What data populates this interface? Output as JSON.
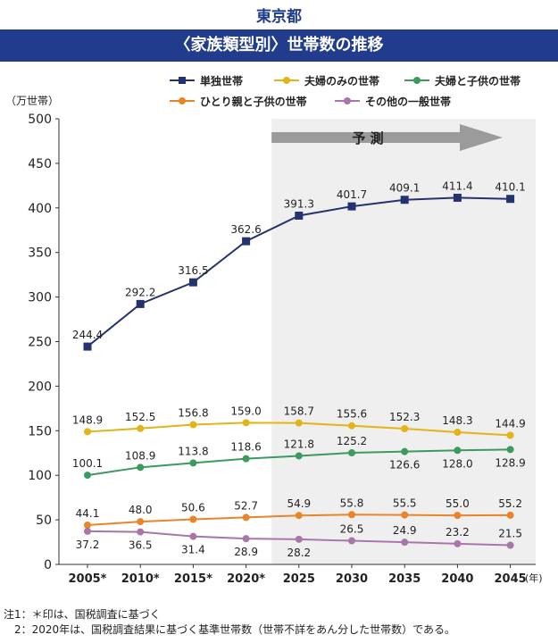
{
  "header": {
    "org": "東京都",
    "title": "〈家族類型別〉世帯数の推移"
  },
  "notes": [
    "注1：＊印は、国税調査に基づく",
    "　2：2020年は、国税調査結果に基づく基準世帯数（世帯不詳をあん分した世帯数）である。"
  ],
  "chart_data": {
    "type": "line",
    "ylabel": "（万世帯）",
    "xlabel_unit": "(年)",
    "ylim": [
      0,
      500
    ],
    "yticks": [
      0,
      50,
      100,
      150,
      200,
      250,
      300,
      350,
      400,
      450,
      500
    ],
    "categories": [
      "2005*",
      "2010*",
      "2015*",
      "2020*",
      "2025",
      "2030",
      "2035",
      "2040",
      "2045"
    ],
    "forecast_label": "予 測",
    "forecast_start_index": 4,
    "series": [
      {
        "name": "単独世帯",
        "color": "#24336f",
        "marker": "square",
        "values": [
          244.4,
          292.2,
          316.5,
          362.6,
          391.3,
          401.7,
          409.1,
          411.4,
          410.1
        ]
      },
      {
        "name": "夫婦のみの世帯",
        "color": "#e2b419",
        "marker": "circle",
        "values": [
          148.9,
          152.5,
          156.8,
          159.0,
          158.7,
          155.6,
          152.3,
          148.3,
          144.9
        ]
      },
      {
        "name": "夫婦と子供の世帯",
        "color": "#3c9a5f",
        "marker": "circle",
        "values": [
          100.1,
          108.9,
          113.8,
          118.6,
          121.8,
          125.2,
          126.6,
          128.0,
          128.9
        ]
      },
      {
        "name": "ひとり親と子供の世帯",
        "color": "#e8852a",
        "marker": "circle",
        "values": [
          44.1,
          48.0,
          50.6,
          52.7,
          54.9,
          55.8,
          55.5,
          55.0,
          55.2
        ]
      },
      {
        "name": "その他の一般世帯",
        "color": "#a876a8",
        "marker": "circle",
        "values": [
          37.2,
          36.5,
          31.4,
          28.9,
          28.2,
          26.5,
          24.9,
          23.2,
          21.5
        ]
      }
    ]
  }
}
